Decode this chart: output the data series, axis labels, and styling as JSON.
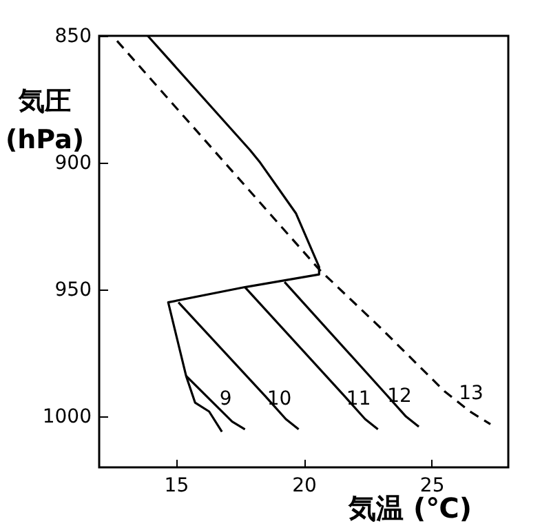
{
  "chart_data": {
    "type": "line",
    "xlabel": "気温 (℃)",
    "ylabel": "気圧\n(hPa)",
    "xlim": [
      12,
      28
    ],
    "xticks": [
      15,
      20,
      25
    ],
    "ylim": [
      1020,
      850
    ],
    "yticks": [
      850,
      900,
      950,
      1000
    ],
    "grid": false,
    "legend": false,
    "series": [
      {
        "color": "#000000",
        "line_style": "solid",
        "x": [
          13.9,
          17.9,
          18.3,
          19.7,
          20.6,
          20.6,
          17.7,
          14.7,
          15.4,
          15.75,
          16.3,
          16.8
        ],
        "values": [
          850,
          895,
          900,
          920,
          941,
          944,
          949,
          955,
          984,
          994.5,
          998,
          1006
        ]
      },
      {
        "name": "9",
        "color": "#000000",
        "line_style": "solid",
        "x": [
          15.4,
          16.5,
          17.2,
          17.7
        ],
        "values": [
          984,
          995,
          1002,
          1005
        ]
      },
      {
        "name": "10",
        "color": "#000000",
        "line_style": "solid",
        "x": [
          15.1,
          18.5,
          19.3,
          19.8
        ],
        "values": [
          955,
          992,
          1001,
          1005
        ]
      },
      {
        "name": "11",
        "color": "#000000",
        "line_style": "solid",
        "x": [
          17.7,
          21.6,
          22.4,
          22.9
        ],
        "values": [
          949,
          992,
          1001,
          1005
        ]
      },
      {
        "name": "12",
        "color": "#000000",
        "line_style": "solid",
        "x": [
          19.25,
          23.2,
          24.0,
          24.5
        ],
        "values": [
          947,
          991,
          1000,
          1004
        ]
      },
      {
        "name": "13",
        "color": "#000000",
        "line_style": "dashed",
        "x": [
          12.7,
          20.6,
          23,
          25.5,
          26.5,
          27.3
        ],
        "values": [
          852,
          942,
          965,
          990,
          998,
          1003
        ]
      }
    ]
  }
}
